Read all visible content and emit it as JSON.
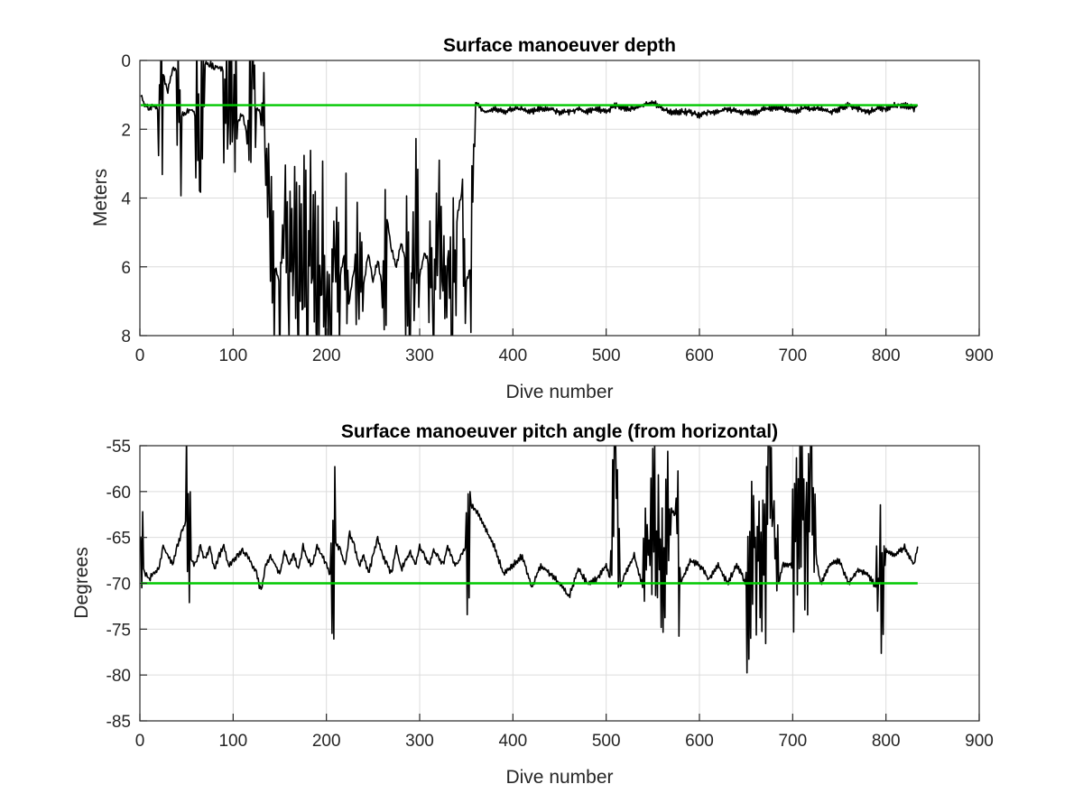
{
  "chart_data": [
    {
      "type": "line",
      "title": "Surface manoeuver depth",
      "xlabel": "Dive number",
      "ylabel": "Meters",
      "xlim": [
        0,
        900
      ],
      "ylim": [
        0,
        8
      ],
      "y_reversed": true,
      "grid": true,
      "xticks": [
        0,
        100,
        200,
        300,
        400,
        500,
        600,
        700,
        800,
        900
      ],
      "yticks": [
        0,
        2,
        4,
        6,
        8
      ],
      "series": [
        {
          "color": "#000000",
          "style": "noisy-line",
          "x": [
            1,
            5,
            10,
            15,
            20,
            25,
            30,
            35,
            40,
            45,
            50,
            55,
            60,
            65,
            70,
            75,
            80,
            85,
            90,
            95,
            100,
            105,
            110,
            115,
            120,
            125,
            130,
            135,
            140,
            145,
            150,
            155,
            160,
            165,
            170,
            175,
            180,
            185,
            190,
            195,
            200,
            205,
            210,
            215,
            220,
            225,
            230,
            235,
            240,
            245,
            250,
            255,
            260,
            265,
            270,
            275,
            280,
            285,
            290,
            295,
            300,
            305,
            310,
            315,
            320,
            325,
            330,
            335,
            340,
            345,
            350,
            355,
            360,
            370,
            380,
            390,
            400,
            410,
            420,
            430,
            440,
            450,
            460,
            470,
            480,
            490,
            500,
            510,
            520,
            530,
            540,
            550,
            560,
            570,
            580,
            590,
            600,
            610,
            620,
            630,
            640,
            650,
            660,
            670,
            680,
            690,
            700,
            710,
            720,
            730,
            740,
            750,
            760,
            770,
            780,
            790,
            800,
            810,
            820,
            830,
            834
          ],
          "y": [
            1.0,
            1.3,
            1.4,
            1.3,
            1.4,
            0.4,
            0.9,
            0.2,
            0.3,
            1.6,
            1.5,
            1.4,
            1.6,
            2.6,
            0.1,
            0.1,
            0.2,
            0.2,
            0.3,
            1.6,
            0.5,
            1.8,
            1.5,
            2.2,
            0.2,
            1.4,
            1.5,
            2.5,
            4.3,
            6.0,
            6.5,
            4.5,
            5.6,
            4.0,
            6.4,
            5.0,
            6.6,
            4.5,
            7.0,
            5.5,
            6.5,
            7.5,
            4.6,
            6.2,
            5.5,
            6.9,
            6.0,
            5.0,
            6.5,
            5.6,
            6.4,
            5.8,
            6.6,
            4.6,
            5.5,
            6.0,
            5.3,
            5.8,
            6.9,
            4.5,
            6.3,
            5.6,
            5.9,
            7.3,
            4.0,
            6.7,
            5.5,
            6.9,
            4.6,
            3.8,
            6.4,
            6.0,
            1.2,
            1.5,
            1.4,
            1.5,
            1.4,
            1.4,
            1.5,
            1.4,
            1.4,
            1.5,
            1.5,
            1.4,
            1.5,
            1.4,
            1.5,
            1.3,
            1.4,
            1.4,
            1.3,
            1.2,
            1.4,
            1.5,
            1.5,
            1.5,
            1.6,
            1.5,
            1.5,
            1.4,
            1.5,
            1.5,
            1.5,
            1.4,
            1.4,
            1.4,
            1.5,
            1.4,
            1.4,
            1.4,
            1.5,
            1.4,
            1.3,
            1.4,
            1.5,
            1.4,
            1.4,
            1.3,
            1.3,
            1.4,
            1.3
          ]
        },
        {
          "color": "#00c800",
          "x": [
            1,
            834
          ],
          "y": [
            1.3,
            1.3
          ]
        }
      ]
    },
    {
      "type": "line",
      "title": "Surface manoeuver pitch angle (from horizontal)",
      "xlabel": "Dive number",
      "ylabel": "Degrees",
      "xlim": [
        0,
        900
      ],
      "ylim": [
        -85,
        -55
      ],
      "grid": true,
      "xticks": [
        0,
        100,
        200,
        300,
        400,
        500,
        600,
        700,
        800,
        900
      ],
      "yticks": [
        -55,
        -60,
        -65,
        -70,
        -75,
        -80,
        -85
      ],
      "series": [
        {
          "color": "#000000",
          "style": "noisy-line",
          "x": [
            1,
            5,
            10,
            15,
            20,
            25,
            30,
            35,
            40,
            45,
            50,
            55,
            60,
            65,
            70,
            75,
            80,
            85,
            90,
            95,
            100,
            105,
            110,
            115,
            120,
            125,
            130,
            135,
            140,
            145,
            150,
            155,
            160,
            165,
            170,
            175,
            180,
            185,
            190,
            195,
            200,
            205,
            210,
            215,
            220,
            225,
            230,
            235,
            240,
            245,
            250,
            255,
            260,
            265,
            270,
            275,
            280,
            285,
            290,
            295,
            300,
            305,
            310,
            315,
            320,
            325,
            330,
            335,
            340,
            345,
            350,
            355,
            360,
            370,
            380,
            390,
            400,
            410,
            420,
            430,
            440,
            450,
            460,
            470,
            480,
            490,
            500,
            505,
            510,
            515,
            520,
            530,
            540,
            550,
            560,
            570,
            575,
            580,
            590,
            600,
            610,
            620,
            630,
            640,
            650,
            660,
            670,
            675,
            680,
            685,
            690,
            700,
            710,
            715,
            720,
            725,
            730,
            740,
            750,
            760,
            770,
            780,
            790,
            800,
            810,
            820,
            830,
            834
          ],
          "y": [
            -65.0,
            -69.0,
            -69.5,
            -69.0,
            -68.5,
            -66.0,
            -67.0,
            -68.0,
            -66.0,
            -64.5,
            -63.0,
            -67.5,
            -68.0,
            -66.0,
            -67.5,
            -66.0,
            -68.5,
            -67.0,
            -66.0,
            -68.0,
            -67.5,
            -67.0,
            -66.5,
            -67.0,
            -68.0,
            -69.0,
            -71.0,
            -68.0,
            -67.0,
            -68.0,
            -69.0,
            -66.5,
            -68.0,
            -67.0,
            -68.5,
            -66.0,
            -67.5,
            -68.0,
            -66.0,
            -67.0,
            -68.0,
            -69.5,
            -65.5,
            -66.5,
            -68.0,
            -64.5,
            -66.0,
            -68.0,
            -67.0,
            -69.0,
            -67.0,
            -65.0,
            -67.0,
            -68.0,
            -69.0,
            -66.0,
            -68.5,
            -67.5,
            -66.5,
            -68.0,
            -66.0,
            -67.0,
            -68.0,
            -66.5,
            -67.0,
            -68.0,
            -66.0,
            -67.5,
            -68.0,
            -67.0,
            -66.0,
            -61.5,
            -62.0,
            -64.0,
            -66.0,
            -69.0,
            -68.0,
            -67.0,
            -70.5,
            -68.0,
            -69.0,
            -70.0,
            -71.5,
            -68.5,
            -70.0,
            -69.5,
            -68.0,
            -70.0,
            -56.0,
            -70.5,
            -69.0,
            -67.0,
            -70.5,
            -62.0,
            -70.0,
            -62.0,
            -63.0,
            -70.0,
            -67.5,
            -68.0,
            -69.5,
            -68.0,
            -70.0,
            -68.0,
            -70.0,
            -65.0,
            -69.5,
            -55.0,
            -65.5,
            -70.0,
            -68.0,
            -68.0,
            -57.5,
            -69.5,
            -56.0,
            -67.0,
            -70.0,
            -68.0,
            -67.5,
            -70.0,
            -68.5,
            -69.0,
            -70.5,
            -66.5,
            -67.0,
            -66.0,
            -68.0,
            -66.0
          ]
        },
        {
          "color": "#00c800",
          "x": [
            1,
            834
          ],
          "y": [
            -70,
            -70
          ]
        }
      ]
    }
  ]
}
